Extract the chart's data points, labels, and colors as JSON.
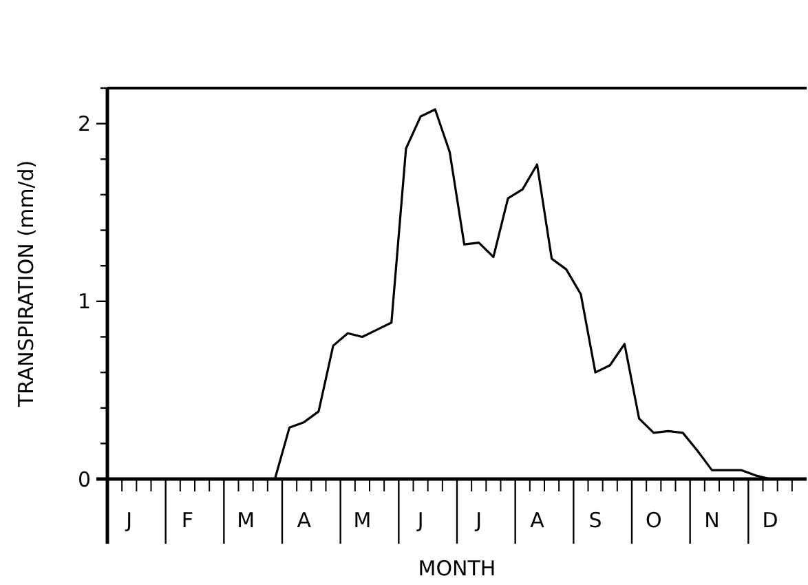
{
  "chart_data": {
    "type": "line",
    "xlabel": "MONTH",
    "ylabel": "TRANSPIRATION (mm/d)",
    "categories": [
      null,
      "J",
      null,
      null,
      null,
      "F",
      null,
      null,
      null,
      "M",
      null,
      null,
      null,
      "A",
      null,
      null,
      null,
      "M",
      null,
      null,
      null,
      "J",
      null,
      null,
      null,
      "J",
      null,
      null,
      null,
      "A",
      null,
      null,
      null,
      "S",
      null,
      null,
      null,
      "O",
      null,
      null,
      null,
      "N",
      null,
      null,
      null,
      "D",
      null,
      null
    ],
    "ylim": [
      0,
      2.2
    ],
    "yticks": [
      0,
      {
        "value": 0.2,
        "label": null
      },
      {
        "value": 0.4,
        "label": null
      },
      {
        "value": 0.6,
        "label": null
      },
      {
        "value": 0.8,
        "label": null
      },
      1,
      {
        "value": 1.2,
        "label": null
      },
      {
        "value": 1.4,
        "label": null
      },
      {
        "value": 1.6,
        "label": null
      },
      {
        "value": 1.8,
        "label": null
      },
      2,
      {
        "value": 2.2,
        "label": null
      }
    ],
    "series": [
      {
        "color": "#000000",
        "values": [
          0,
          0,
          0,
          0,
          0,
          0,
          0,
          0,
          0,
          0,
          0,
          0,
          0.29,
          0.32,
          0.38,
          0.75,
          0.82,
          0.8,
          0.84,
          0.88,
          1.86,
          2.04,
          2.08,
          1.84,
          1.32,
          1.33,
          1.25,
          1.58,
          1.63,
          1.77,
          1.24,
          1.18,
          1.04,
          0.6,
          0.64,
          0.76,
          0.34,
          0.26,
          0.27,
          0.26,
          0.16,
          0.05,
          0.05,
          0.05,
          0.02,
          0,
          0,
          0
        ]
      }
    ]
  }
}
